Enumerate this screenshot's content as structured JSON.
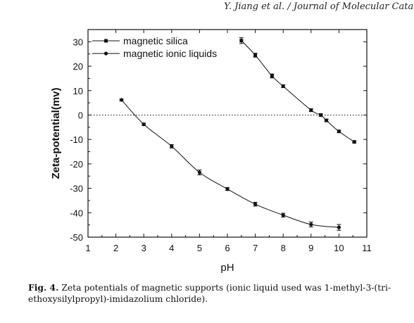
{
  "header": {
    "text": "Y. Jiang et al. / Journal of Molecular Catal"
  },
  "caption": {
    "label": "Fig. 4.",
    "text": "Zeta potentials of magnetic supports (ionic liquid used was 1-methyl-3-(tri-ethoxysilylpropyl)-imidazolium chloride)."
  },
  "chart_data": {
    "type": "scatter",
    "title": "",
    "xlabel": "pH",
    "ylabel": "Zeta-potential(mv)",
    "xlim": [
      1,
      11
    ],
    "ylim": [
      -50,
      35
    ],
    "xticks": [
      "1",
      "2",
      "3",
      "4",
      "5",
      "6",
      "7",
      "8",
      "9",
      "10",
      "11"
    ],
    "yticks": [
      "30",
      "20",
      "10",
      "0",
      "-10",
      "-20",
      "-30",
      "-40",
      "-50"
    ],
    "legend_position": "top-left",
    "reference_line_y": 0,
    "series": [
      {
        "name": "magnetic silica",
        "marker": "square",
        "x": [
          6.5,
          7.0,
          7.6,
          8.0,
          9.0,
          9.35,
          9.55,
          10.0,
          10.55
        ],
        "y": [
          30.5,
          24.5,
          16.0,
          11.8,
          2.0,
          0.0,
          -2.2,
          -6.7,
          -11.0
        ],
        "error": [
          1.2,
          0.8,
          0.8,
          0.6,
          0.6,
          0.5,
          0.5,
          0.5,
          0.4
        ]
      },
      {
        "name": "magnetic ionic liquids",
        "marker": "circle",
        "x": [
          2.2,
          3.0,
          4.0,
          5.0,
          6.0,
          7.0,
          8.0,
          9.0,
          10.0
        ],
        "y": [
          6.2,
          -3.8,
          -12.8,
          -23.5,
          -30.3,
          -36.5,
          -41.0,
          -44.8,
          -46.0
        ],
        "error": [
          0.4,
          0.5,
          0.7,
          1.0,
          0.6,
          0.8,
          0.8,
          1.0,
          1.2
        ]
      }
    ]
  }
}
